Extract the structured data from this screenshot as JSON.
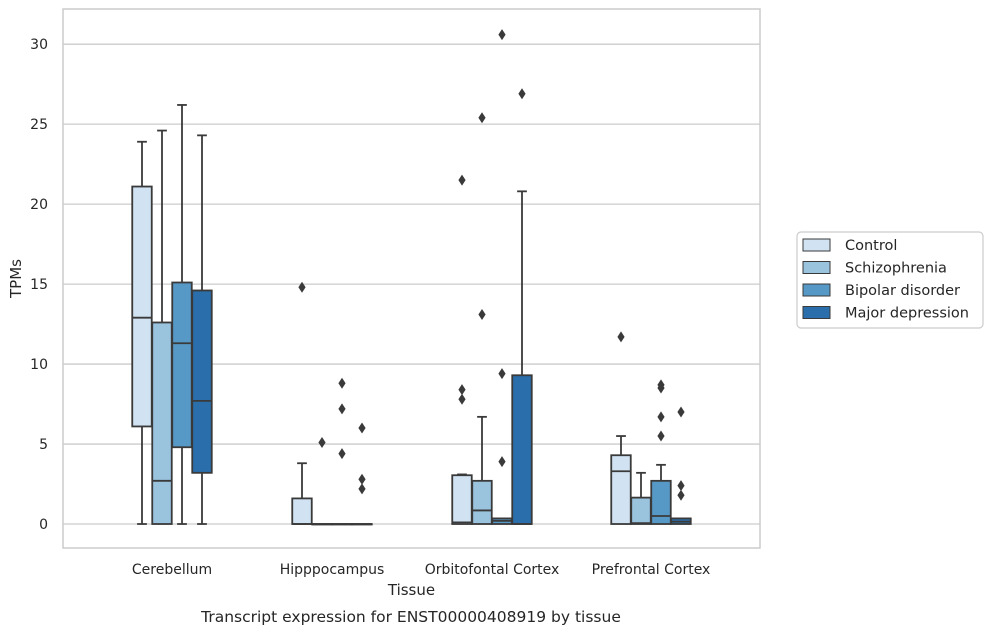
{
  "chart_data": {
    "type": "box",
    "caption": "Transcript expression for ENST00000408919 by tissue",
    "xlabel": "Tissue",
    "ylabel": "TPMs",
    "ylim": [
      -1.5,
      32.2
    ],
    "yticks": [
      0,
      5,
      10,
      15,
      20,
      25,
      30
    ],
    "grid": "horizontal",
    "legend_placement": "center-right",
    "categories": [
      "Cerebellum",
      "Hipppocampus",
      "Orbitofontal Cortex",
      "Prefrontal Cortex"
    ],
    "series": [
      {
        "name": "Control",
        "color": "#d1e2f2",
        "boxes": [
          {
            "whislo": 0,
            "q1": 6.1,
            "med": 12.9,
            "q3": 21.1,
            "whishi": 23.9,
            "fliers": []
          },
          {
            "whislo": 0,
            "q1": 0,
            "med": 0,
            "q3": 1.6,
            "whishi": 3.8,
            "fliers": [
              14.8
            ]
          },
          {
            "whislo": 0,
            "q1": 0,
            "med": 0.1,
            "q3": 3.05,
            "whishi": 3.1,
            "fliers": [
              7.8,
              8.4,
              21.5
            ]
          },
          {
            "whislo": 0,
            "q1": 0,
            "med": 3.3,
            "q3": 4.3,
            "whishi": 5.5,
            "fliers": [
              11.7
            ]
          }
        ]
      },
      {
        "name": "Schizophrenia",
        "color": "#9ac3de",
        "boxes": [
          {
            "whislo": 0,
            "q1": 0,
            "med": 2.7,
            "q3": 12.6,
            "whishi": 24.6,
            "fliers": []
          },
          {
            "whislo": 0,
            "q1": 0,
            "med": 0,
            "q3": 0,
            "whishi": 0,
            "fliers": [
              5.1
            ]
          },
          {
            "whislo": 0,
            "q1": 0,
            "med": 0.85,
            "q3": 2.7,
            "whishi": 6.7,
            "fliers": [
              13.1,
              25.4
            ]
          },
          {
            "whislo": 0,
            "q1": 0,
            "med": 0.05,
            "q3": 1.65,
            "whishi": 3.2,
            "fliers": []
          }
        ]
      },
      {
        "name": "Bipolar disorder",
        "color": "#5799c6",
        "boxes": [
          {
            "whislo": 0,
            "q1": 4.8,
            "med": 11.3,
            "q3": 15.1,
            "whishi": 26.2,
            "fliers": []
          },
          {
            "whislo": 0,
            "q1": 0,
            "med": 0,
            "q3": 0,
            "whishi": 0,
            "fliers": [
              4.4,
              7.2,
              8.8
            ]
          },
          {
            "whislo": 0,
            "q1": 0,
            "med": 0.2,
            "q3": 0.35,
            "whishi": 0.35,
            "fliers": [
              3.9,
              9.4,
              30.6
            ]
          },
          {
            "whislo": 0,
            "q1": 0,
            "med": 0.5,
            "q3": 2.7,
            "whishi": 3.7,
            "fliers": [
              5.5,
              6.7,
              8.5,
              8.7
            ]
          }
        ]
      },
      {
        "name": "Major depression",
        "color": "#2a6eac",
        "boxes": [
          {
            "whislo": 0,
            "q1": 3.2,
            "med": 7.7,
            "q3": 14.6,
            "whishi": 24.3,
            "fliers": []
          },
          {
            "whislo": 0,
            "q1": 0,
            "med": 0,
            "q3": 0,
            "whishi": 0,
            "fliers": [
              2.2,
              2.8,
              6.0
            ]
          },
          {
            "whislo": 0,
            "q1": 0,
            "med": 0,
            "q3": 9.3,
            "whishi": 20.8,
            "fliers": [
              26.9
            ]
          },
          {
            "whislo": 0,
            "q1": 0,
            "med": 0.15,
            "q3": 0.35,
            "whishi": 0.35,
            "fliers": [
              1.8,
              2.4,
              7.0
            ]
          }
        ]
      }
    ]
  }
}
